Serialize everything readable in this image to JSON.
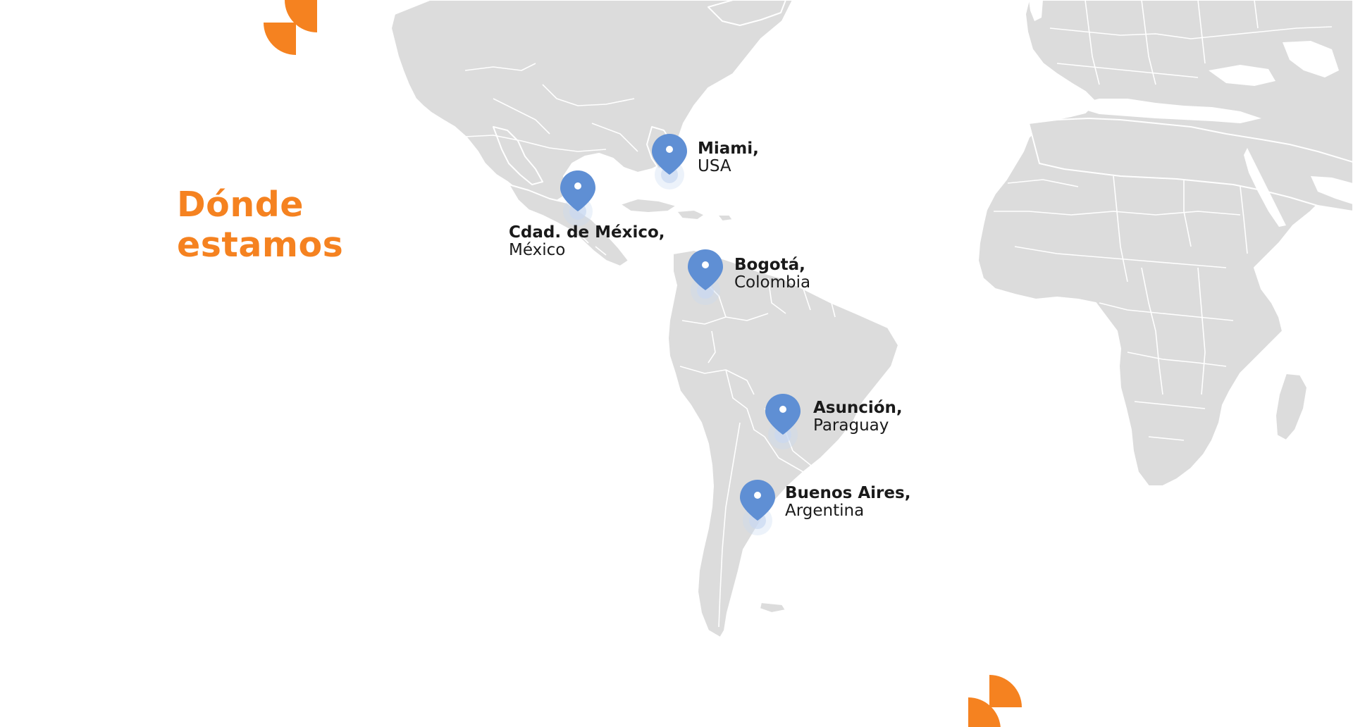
{
  "heading": {
    "line1": "Dónde",
    "line2": "estamos"
  },
  "locations": [
    {
      "city": "Miami,",
      "country": "USA"
    },
    {
      "city": "Cdad. de México,",
      "country": "México"
    },
    {
      "city": "Bogotá,",
      "country": "Colombia"
    },
    {
      "city": "Asunción,",
      "country": "Paraguay"
    },
    {
      "city": "Buenos Aires,",
      "country": "Argentina"
    }
  ],
  "icons": {
    "marker": "map-pin-icon",
    "decoration": "quarter-circle-shapes"
  },
  "colors": {
    "accent": "#f58220",
    "land": "#dcdcdc",
    "pin": "#5f8fd4",
    "pin_glow": "#c9d9f1",
    "text": "#1a1a1a",
    "background": "#ffffff"
  }
}
